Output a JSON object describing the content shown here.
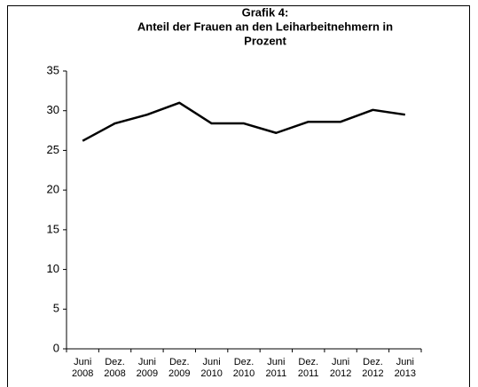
{
  "chart_data": {
    "type": "line",
    "title": [
      "Grafik 4:",
      "Anteil  der Frauen an den Leiharbeitnehmern in",
      "Prozent"
    ],
    "categories": [
      "Juni 2008",
      "Dez. 2008",
      "Juni 2009",
      "Dez. 2009",
      "Juni 2010",
      "Dez. 2010",
      "Juni 2011",
      "Dez. 2011",
      "Juni 2012",
      "Dez. 2012",
      "Juni 2013"
    ],
    "values": [
      26.2,
      28.4,
      29.5,
      31.0,
      28.4,
      28.4,
      27.2,
      28.6,
      28.6,
      30.1,
      29.5
    ],
    "color": "#000000",
    "ylim": [
      0,
      35
    ],
    "yticks": [
      0,
      5,
      10,
      15,
      20,
      25,
      30,
      35
    ],
    "grid": false
  }
}
